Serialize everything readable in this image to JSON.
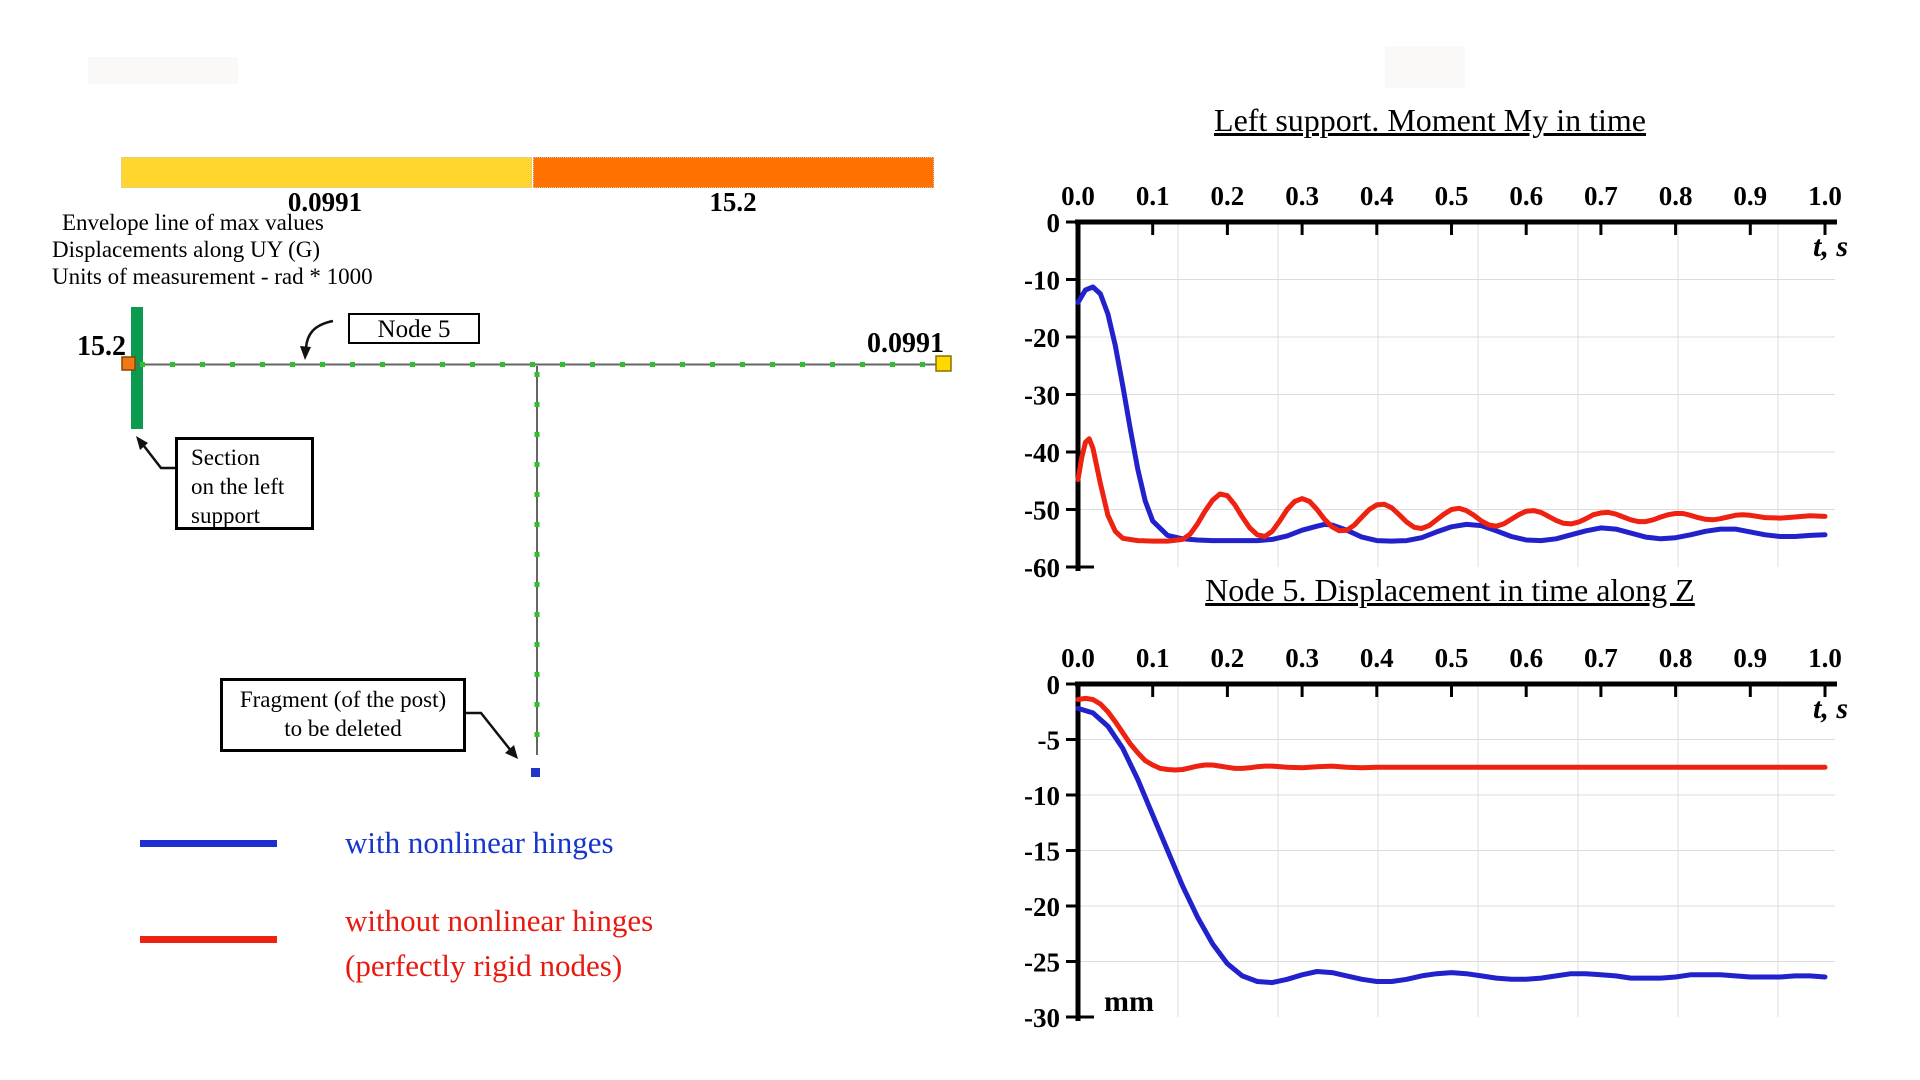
{
  "colorbar": {
    "yellow_label": "0.0991",
    "orange_label": "15.2",
    "yellow_color": "#ffd52e",
    "orange_color": "#ff7100"
  },
  "info_block": {
    "lines": [
      "Envelope line of max values",
      "Displacements along UY (G)",
      "Units of measurement - rad * 1000"
    ]
  },
  "diagram": {
    "left_value": "15.2",
    "right_value": "0.0991",
    "node_box_label": "Node 5",
    "section_box_lines": [
      "Section",
      "on the left",
      "support"
    ],
    "fragment_box_lines": [
      "Fragment (of the post)",
      "to be deleted"
    ],
    "colors": {
      "support": "#0a9b50",
      "beam": "#666666",
      "dots": "#2ebf2e",
      "left_marker": "#f07818",
      "left_marker_border": "#8a4500",
      "right_marker": "#ffd800",
      "right_marker_border": "#8a7000",
      "post_dot": "#2233cc",
      "arrow": "#111111"
    }
  },
  "legend": {
    "items": [
      {
        "line1": "with nonlinear hinges",
        "line2": "",
        "text_color": "#1535cc",
        "line_color": "#1e2fd2"
      },
      {
        "line1": "without nonlinear hinges",
        "line2": "(perfectly rigid nodes)",
        "text_color": "#e8190f",
        "line_color": "#ee2211"
      }
    ]
  },
  "chart_data": [
    {
      "type": "line",
      "title": "Left support. Moment My in time",
      "xlabel": "t, s",
      "ylabel": "",
      "unit_label": "",
      "x_axis_position": "top",
      "grid": true,
      "legend_position": "none",
      "xlim": [
        0,
        1
      ],
      "ylim": [
        -60,
        0
      ],
      "x_ticks": [
        "0.0",
        "0.1",
        "0.2",
        "0.3",
        "0.4",
        "0.5",
        "0.6",
        "0.7",
        "0.8",
        "0.9",
        "1.0"
      ],
      "y_ticks": [
        0,
        -10,
        -20,
        -30,
        -40,
        -50,
        -60
      ],
      "series": [
        {
          "name": "with nonlinear hinges",
          "color": "#2222cc",
          "x": [
            0,
            0.01,
            0.02,
            0.03,
            0.04,
            0.05,
            0.06,
            0.07,
            0.08,
            0.09,
            0.1,
            0.12,
            0.14,
            0.16,
            0.18,
            0.2,
            0.22,
            0.24,
            0.26,
            0.28,
            0.3,
            0.32,
            0.33,
            0.34,
            0.36,
            0.38,
            0.4,
            0.42,
            0.44,
            0.46,
            0.48,
            0.5,
            0.52,
            0.54,
            0.56,
            0.58,
            0.6,
            0.62,
            0.64,
            0.66,
            0.68,
            0.7,
            0.72,
            0.74,
            0.76,
            0.78,
            0.8,
            0.82,
            0.84,
            0.86,
            0.88,
            0.9,
            0.92,
            0.94,
            0.96,
            0.98,
            1.0
          ],
          "y": [
            -14,
            -11.8,
            -11.3,
            -12.5,
            -16,
            -21.5,
            -28.5,
            -36,
            -43,
            -48.5,
            -52,
            -54.5,
            -55.1,
            -55.3,
            -55.4,
            -55.4,
            -55.4,
            -55.4,
            -55.2,
            -54.6,
            -53.6,
            -52.9,
            -52.6,
            -52.7,
            -53.6,
            -54.8,
            -55.4,
            -55.5,
            -55.4,
            -54.9,
            -53.9,
            -53.0,
            -52.6,
            -52.8,
            -53.7,
            -54.7,
            -55.3,
            -55.4,
            -55.1,
            -54.4,
            -53.7,
            -53.2,
            -53.4,
            -54.1,
            -54.8,
            -55.1,
            -54.9,
            -54.4,
            -53.8,
            -53.4,
            -53.4,
            -53.9,
            -54.4,
            -54.7,
            -54.7,
            -54.5,
            -54.4
          ]
        },
        {
          "name": "without nonlinear hinges (perfectly rigid nodes)",
          "color": "#ee2211",
          "x": [
            0,
            0.005,
            0.01,
            0.015,
            0.02,
            0.03,
            0.04,
            0.05,
            0.06,
            0.08,
            0.1,
            0.12,
            0.14,
            0.15,
            0.16,
            0.17,
            0.18,
            0.19,
            0.2,
            0.21,
            0.22,
            0.23,
            0.24,
            0.25,
            0.26,
            0.27,
            0.28,
            0.29,
            0.3,
            0.31,
            0.32,
            0.33,
            0.34,
            0.35,
            0.36,
            0.37,
            0.38,
            0.39,
            0.4,
            0.41,
            0.42,
            0.43,
            0.44,
            0.45,
            0.46,
            0.47,
            0.48,
            0.49,
            0.5,
            0.51,
            0.52,
            0.53,
            0.54,
            0.55,
            0.56,
            0.57,
            0.58,
            0.59,
            0.6,
            0.61,
            0.62,
            0.63,
            0.64,
            0.65,
            0.66,
            0.67,
            0.68,
            0.69,
            0.7,
            0.71,
            0.72,
            0.73,
            0.74,
            0.75,
            0.76,
            0.77,
            0.78,
            0.79,
            0.8,
            0.81,
            0.82,
            0.83,
            0.84,
            0.85,
            0.86,
            0.87,
            0.88,
            0.89,
            0.9,
            0.92,
            0.94,
            0.96,
            0.98,
            1.0
          ],
          "y": [
            -44.8,
            -41,
            -38.3,
            -37.7,
            -39.3,
            -45.5,
            -51,
            -53.8,
            -55,
            -55.4,
            -55.5,
            -55.5,
            -55.2,
            -54.3,
            -52.5,
            -50.3,
            -48.4,
            -47.3,
            -47.6,
            -49.2,
            -51.3,
            -53.2,
            -54.4,
            -54.7,
            -53.8,
            -52,
            -50,
            -48.6,
            -48.1,
            -48.6,
            -50,
            -51.7,
            -53,
            -53.7,
            -53.6,
            -52.7,
            -51.3,
            -50,
            -49.2,
            -49.1,
            -49.7,
            -50.9,
            -52.2,
            -53.1,
            -53.3,
            -52.8,
            -51.8,
            -50.8,
            -50,
            -49.8,
            -50.2,
            -51,
            -52,
            -52.7,
            -52.9,
            -52.5,
            -51.7,
            -50.9,
            -50.3,
            -50.2,
            -50.5,
            -51.2,
            -51.9,
            -52.4,
            -52.5,
            -52.2,
            -51.6,
            -50.9,
            -50.6,
            -50.5,
            -50.8,
            -51.3,
            -51.8,
            -52.1,
            -52.1,
            -51.8,
            -51.3,
            -50.9,
            -50.7,
            -50.7,
            -51,
            -51.4,
            -51.7,
            -51.8,
            -51.6,
            -51.3,
            -51,
            -50.9,
            -51,
            -51.4,
            -51.5,
            -51.3,
            -51.1,
            -51.2
          ]
        }
      ]
    },
    {
      "type": "line",
      "title": "Node 5. Displacement in time along Z",
      "xlabel": "t, s",
      "ylabel": "",
      "unit_label": "mm",
      "x_axis_position": "top",
      "grid": true,
      "legend_position": "none",
      "xlim": [
        0,
        1
      ],
      "ylim": [
        -30,
        0
      ],
      "x_ticks": [
        "0.0",
        "0.1",
        "0.2",
        "0.3",
        "0.4",
        "0.5",
        "0.6",
        "0.7",
        "0.8",
        "0.9",
        "1.0"
      ],
      "y_ticks": [
        0,
        -5,
        -10,
        -15,
        -20,
        -25,
        -30
      ],
      "series": [
        {
          "name": "with nonlinear hinges",
          "color": "#2222cc",
          "x": [
            0,
            0.02,
            0.04,
            0.06,
            0.08,
            0.1,
            0.12,
            0.14,
            0.16,
            0.18,
            0.2,
            0.22,
            0.24,
            0.26,
            0.28,
            0.3,
            0.32,
            0.34,
            0.36,
            0.38,
            0.4,
            0.42,
            0.44,
            0.46,
            0.48,
            0.5,
            0.52,
            0.54,
            0.56,
            0.58,
            0.6,
            0.62,
            0.64,
            0.66,
            0.68,
            0.7,
            0.72,
            0.74,
            0.76,
            0.78,
            0.8,
            0.82,
            0.84,
            0.86,
            0.88,
            0.9,
            0.92,
            0.94,
            0.96,
            0.98,
            1.0
          ],
          "y": [
            -2.2,
            -2.6,
            -3.8,
            -5.8,
            -8.6,
            -11.8,
            -15.0,
            -18.2,
            -21.0,
            -23.4,
            -25.2,
            -26.3,
            -26.8,
            -26.9,
            -26.6,
            -26.2,
            -25.9,
            -26.0,
            -26.3,
            -26.6,
            -26.8,
            -26.8,
            -26.6,
            -26.3,
            -26.1,
            -26.0,
            -26.1,
            -26.3,
            -26.5,
            -26.6,
            -26.6,
            -26.5,
            -26.3,
            -26.1,
            -26.1,
            -26.2,
            -26.3,
            -26.5,
            -26.5,
            -26.5,
            -26.4,
            -26.2,
            -26.2,
            -26.2,
            -26.3,
            -26.4,
            -26.4,
            -26.4,
            -26.3,
            -26.3,
            -26.4
          ]
        },
        {
          "name": "without nonlinear hinges (perfectly rigid nodes)",
          "color": "#ee2211",
          "x": [
            0,
            0.01,
            0.02,
            0.03,
            0.04,
            0.05,
            0.06,
            0.07,
            0.08,
            0.09,
            0.1,
            0.11,
            0.12,
            0.13,
            0.14,
            0.15,
            0.16,
            0.17,
            0.18,
            0.19,
            0.2,
            0.21,
            0.22,
            0.23,
            0.24,
            0.25,
            0.26,
            0.28,
            0.3,
            0.32,
            0.34,
            0.36,
            0.38,
            0.4,
            0.44,
            0.48,
            0.52,
            0.56,
            0.6,
            0.7,
            0.8,
            0.9,
            1.0
          ],
          "y": [
            -1.4,
            -1.3,
            -1.4,
            -1.8,
            -2.5,
            -3.4,
            -4.4,
            -5.4,
            -6.2,
            -6.9,
            -7.3,
            -7.6,
            -7.7,
            -7.75,
            -7.7,
            -7.55,
            -7.4,
            -7.3,
            -7.3,
            -7.4,
            -7.5,
            -7.6,
            -7.6,
            -7.55,
            -7.45,
            -7.4,
            -7.4,
            -7.5,
            -7.55,
            -7.45,
            -7.4,
            -7.5,
            -7.55,
            -7.5,
            -7.5,
            -7.5,
            -7.5,
            -7.5,
            -7.5,
            -7.5,
            -7.5,
            -7.5,
            -7.5
          ]
        }
      ]
    }
  ]
}
